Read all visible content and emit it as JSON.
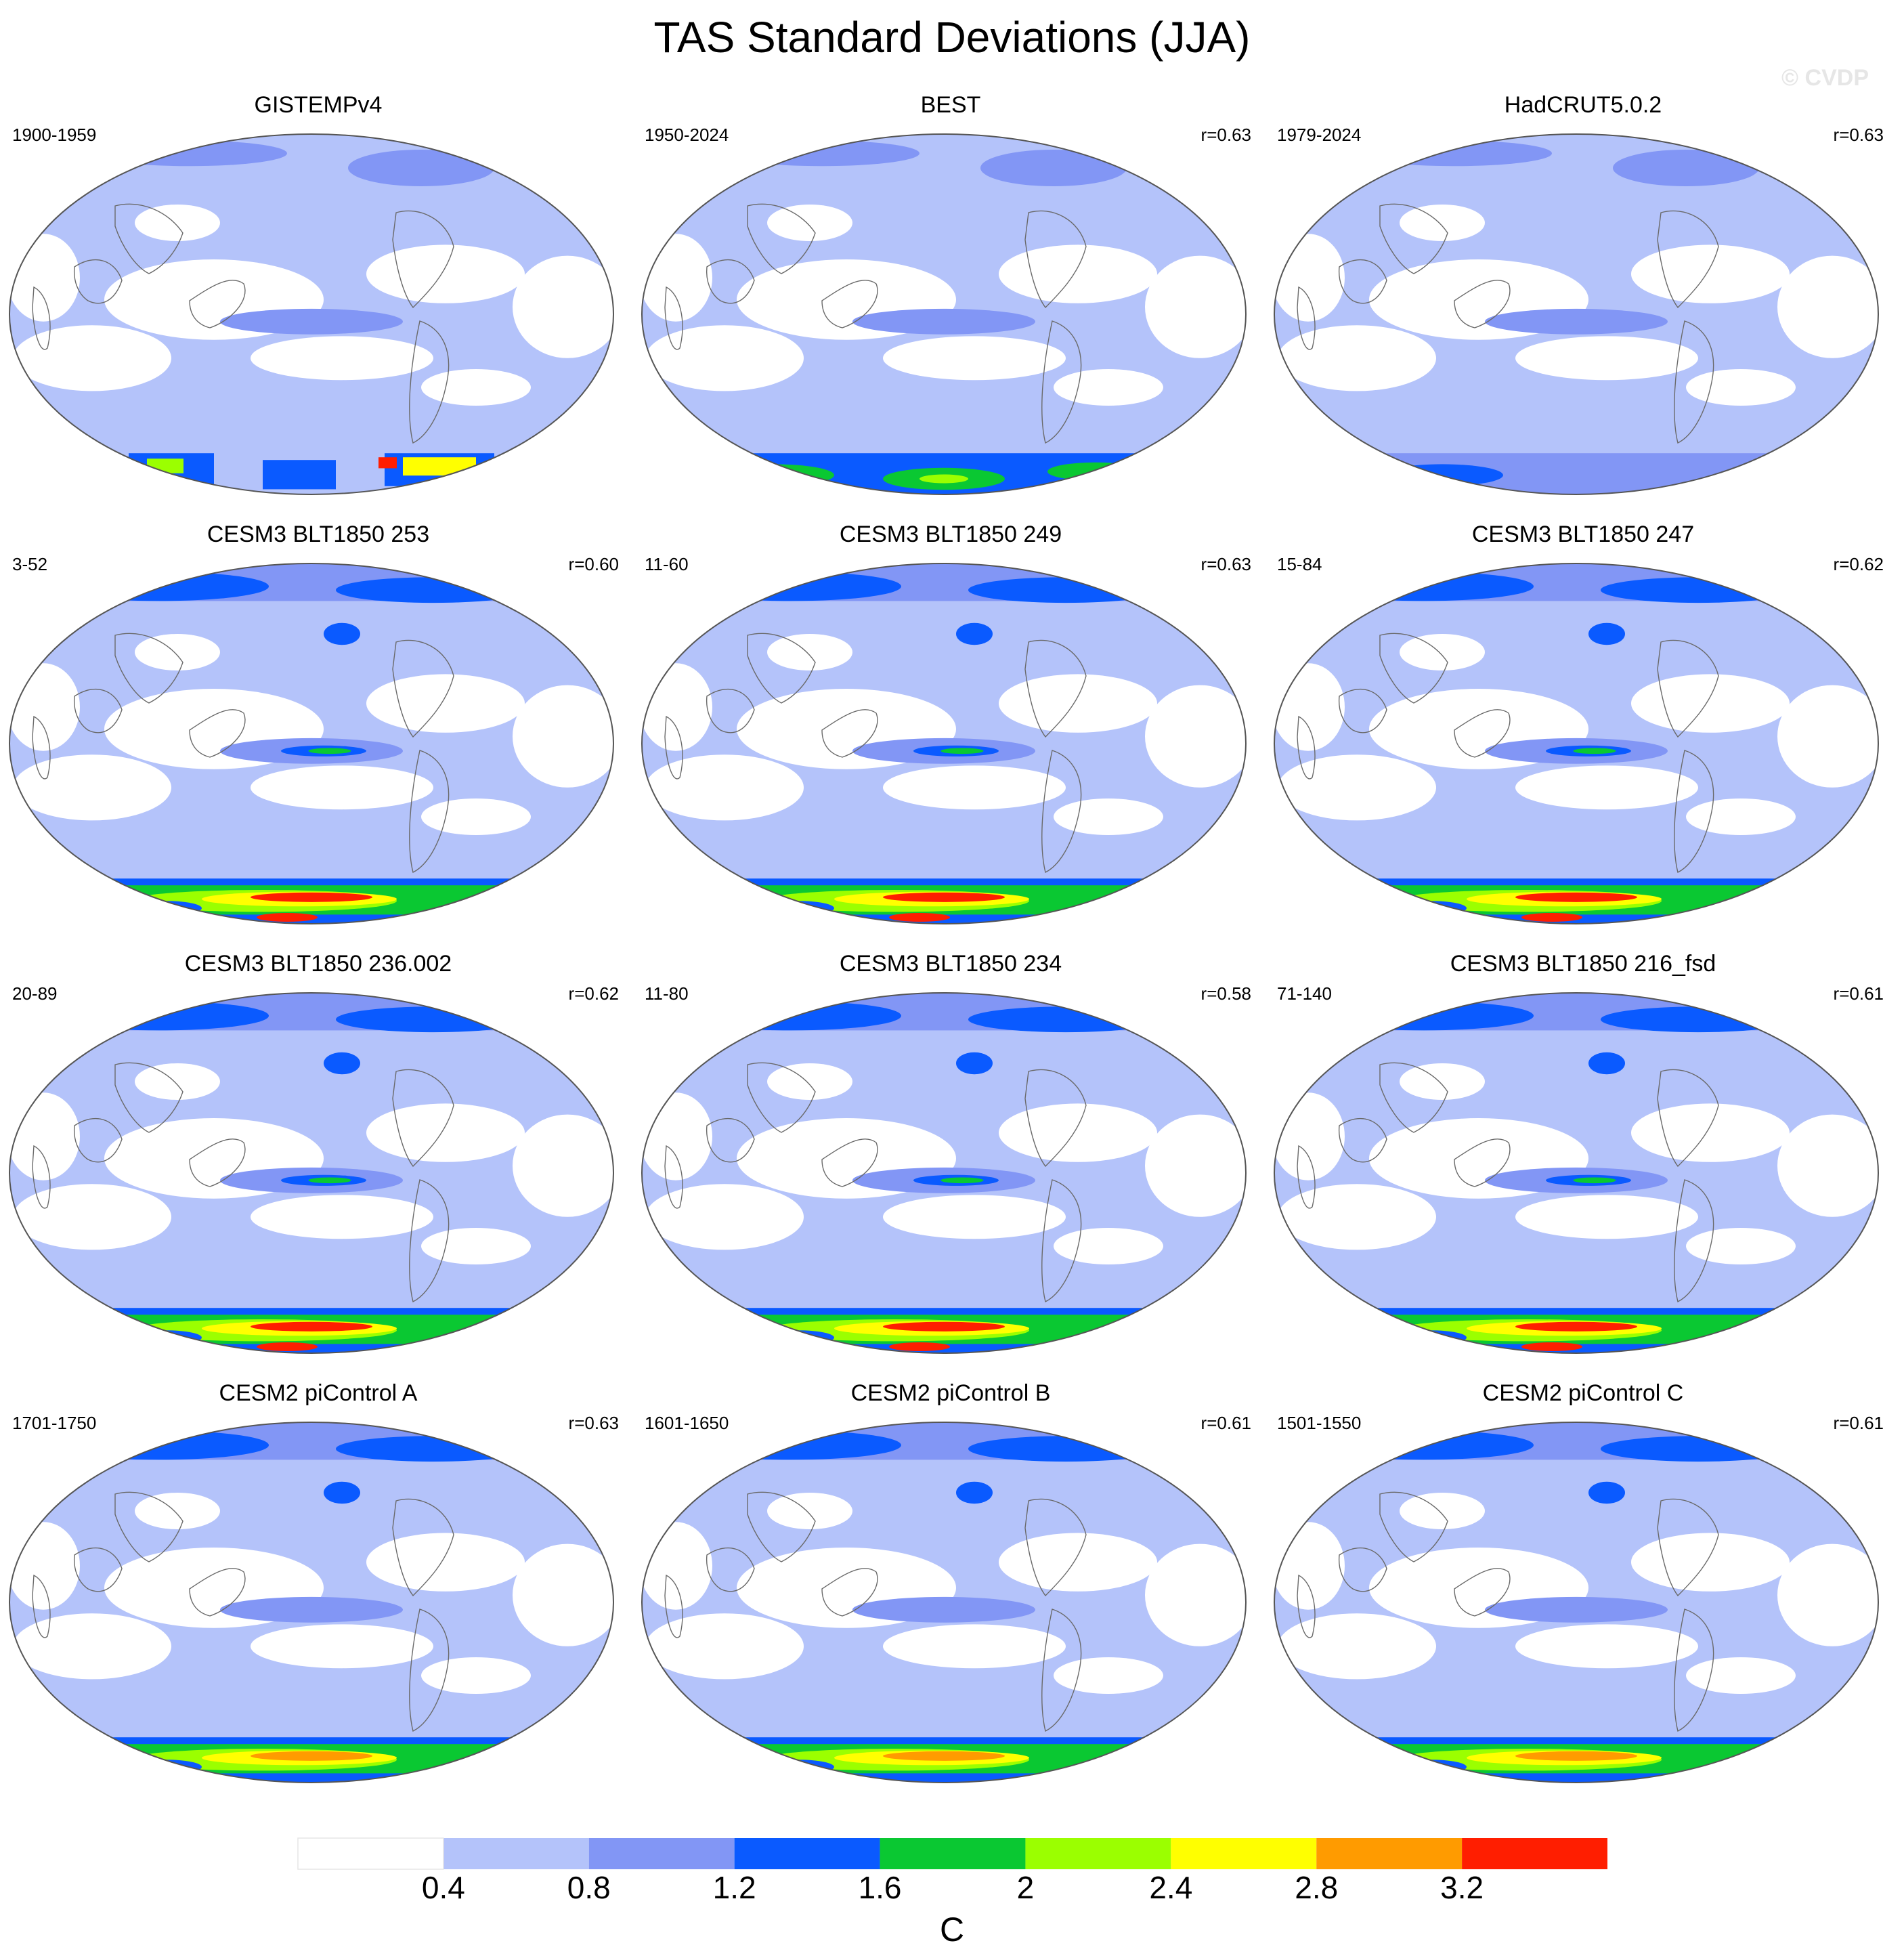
{
  "title": "TAS Standard Deviations (JJA)",
  "watermark": "© CVDP",
  "panels": [
    {
      "title": "GISTEMPv4",
      "years": "1900-1959",
      "r": "",
      "style": "obs_gistemp"
    },
    {
      "title": "BEST",
      "years": "1950-2024",
      "r": "r=0.63",
      "style": "obs_best"
    },
    {
      "title": "HadCRUT5.0.2",
      "years": "1979-2024",
      "r": "r=0.63",
      "style": "obs_hadcrut"
    },
    {
      "title": "CESM3 BLT1850 253",
      "years": "3-52",
      "r": "r=0.60",
      "style": "model_strong"
    },
    {
      "title": "CESM3 BLT1850 249",
      "years": "11-60",
      "r": "r=0.63",
      "style": "model_strong"
    },
    {
      "title": "CESM3 BLT1850 247",
      "years": "15-84",
      "r": "r=0.62",
      "style": "model_strong"
    },
    {
      "title": "CESM3 BLT1850 236.002",
      "years": "20-89",
      "r": "r=0.62",
      "style": "model_strong"
    },
    {
      "title": "CESM3 BLT1850 234",
      "years": "11-80",
      "r": "r=0.58",
      "style": "model_strong"
    },
    {
      "title": "CESM3 BLT1850 216_fsd",
      "years": "71-140",
      "r": "r=0.61",
      "style": "model_strong"
    },
    {
      "title": "CESM2 piControl A",
      "years": "1701-1750",
      "r": "r=0.63",
      "style": "model_mild"
    },
    {
      "title": "CESM2 piControl B",
      "years": "1601-1650",
      "r": "r=0.61",
      "style": "model_mild"
    },
    {
      "title": "CESM2 piControl C",
      "years": "1501-1550",
      "r": "r=0.61",
      "style": "model_mild"
    }
  ],
  "colorbar": {
    "unit": "C",
    "ticks": [
      "0.4",
      "0.8",
      "1.2",
      "1.6",
      "2",
      "2.4",
      "2.8",
      "3.2"
    ],
    "colors": [
      "#ffffff",
      "#b4c3fa",
      "#8296f5",
      "#0a5aff",
      "#0ac832",
      "#9bff00",
      "#ffff00",
      "#ff9b00",
      "#ff1e00"
    ]
  }
}
